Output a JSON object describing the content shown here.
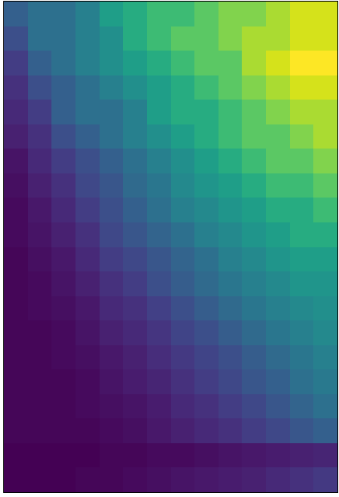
{
  "chart_data": {
    "type": "heatmap",
    "color": "viridis",
    "tick_labels": false,
    "cells": [
      [
        0.25,
        0.3,
        0.3,
        0.35,
        0.45,
        0.5,
        0.55,
        0.55,
        0.6,
        0.65,
        0.65,
        0.7,
        0.75,
        0.75
      ],
      [
        0.2,
        0.3,
        0.3,
        0.35,
        0.4,
        0.5,
        0.55,
        0.6,
        0.6,
        0.65,
        0.7,
        0.7,
        0.75,
        0.75
      ],
      [
        0.15,
        0.25,
        0.3,
        0.35,
        0.4,
        0.45,
        0.5,
        0.55,
        0.6,
        0.6,
        0.7,
        0.75,
        0.8,
        0.8
      ],
      [
        0.12,
        0.2,
        0.25,
        0.3,
        0.35,
        0.4,
        0.45,
        0.5,
        0.55,
        0.6,
        0.65,
        0.7,
        0.75,
        0.75
      ],
      [
        0.1,
        0.15,
        0.25,
        0.3,
        0.3,
        0.35,
        0.45,
        0.5,
        0.5,
        0.55,
        0.6,
        0.65,
        0.7,
        0.7
      ],
      [
        0.08,
        0.12,
        0.2,
        0.25,
        0.3,
        0.35,
        0.4,
        0.45,
        0.5,
        0.55,
        0.6,
        0.6,
        0.65,
        0.7
      ],
      [
        0.05,
        0.1,
        0.15,
        0.2,
        0.25,
        0.3,
        0.35,
        0.4,
        0.45,
        0.5,
        0.55,
        0.6,
        0.6,
        0.65
      ],
      [
        0.04,
        0.08,
        0.12,
        0.18,
        0.22,
        0.28,
        0.32,
        0.38,
        0.42,
        0.45,
        0.5,
        0.55,
        0.55,
        0.6
      ],
      [
        0.03,
        0.06,
        0.1,
        0.15,
        0.2,
        0.25,
        0.3,
        0.35,
        0.38,
        0.42,
        0.45,
        0.5,
        0.5,
        0.55
      ],
      [
        0.03,
        0.05,
        0.08,
        0.12,
        0.18,
        0.22,
        0.26,
        0.3,
        0.35,
        0.38,
        0.42,
        0.45,
        0.5,
        0.5
      ],
      [
        0.02,
        0.04,
        0.06,
        0.1,
        0.15,
        0.18,
        0.22,
        0.26,
        0.3,
        0.35,
        0.38,
        0.42,
        0.45,
        0.45
      ],
      [
        0.02,
        0.03,
        0.05,
        0.08,
        0.12,
        0.15,
        0.2,
        0.24,
        0.28,
        0.32,
        0.35,
        0.38,
        0.42,
        0.42
      ],
      [
        0.02,
        0.03,
        0.04,
        0.06,
        0.1,
        0.12,
        0.16,
        0.2,
        0.24,
        0.28,
        0.32,
        0.35,
        0.38,
        0.4
      ],
      [
        0.02,
        0.02,
        0.03,
        0.05,
        0.08,
        0.1,
        0.13,
        0.17,
        0.2,
        0.24,
        0.28,
        0.32,
        0.35,
        0.38
      ],
      [
        0.02,
        0.02,
        0.03,
        0.04,
        0.06,
        0.08,
        0.11,
        0.14,
        0.17,
        0.2,
        0.24,
        0.28,
        0.32,
        0.35
      ],
      [
        0.02,
        0.02,
        0.02,
        0.03,
        0.05,
        0.07,
        0.09,
        0.12,
        0.15,
        0.18,
        0.22,
        0.25,
        0.3,
        0.33
      ],
      [
        0.02,
        0.02,
        0.02,
        0.03,
        0.04,
        0.05,
        0.07,
        0.1,
        0.12,
        0.15,
        0.18,
        0.22,
        0.26,
        0.3
      ],
      [
        0.02,
        0.02,
        0.02,
        0.02,
        0.03,
        0.04,
        0.06,
        0.08,
        0.1,
        0.12,
        0.15,
        0.18,
        0.22,
        0.25
      ],
      [
        0.01,
        0.01,
        0.01,
        0.01,
        0.02,
        0.02,
        0.03,
        0.03,
        0.04,
        0.05,
        0.06,
        0.07,
        0.08,
        0.09
      ],
      [
        0.01,
        0.01,
        0.01,
        0.02,
        0.02,
        0.03,
        0.04,
        0.05,
        0.06,
        0.07,
        0.08,
        0.1,
        0.12,
        0.14
      ]
    ]
  }
}
